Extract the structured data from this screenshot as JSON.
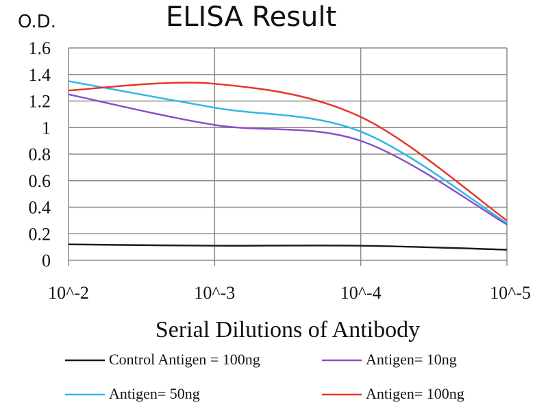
{
  "chart_data": {
    "type": "line",
    "title": "ELISA Result",
    "ylabel": "O.D.",
    "xlabel": "Serial Dilutions of Antibody",
    "categories": [
      "10^-2",
      "10^-3",
      "10^-4",
      "10^-5"
    ],
    "ylim": [
      0,
      1.6
    ],
    "yticks": [
      "0",
      "0.2",
      "0.4",
      "0.6",
      "0.8",
      "1",
      "1.2",
      "1.4",
      "1.6"
    ],
    "grid": true,
    "legend_position": "bottom",
    "series": [
      {
        "name": "Control Antigen = 100ng",
        "color": "#1a1a1a",
        "values": [
          0.12,
          0.11,
          0.11,
          0.08
        ]
      },
      {
        "name": "Antigen= 10ng",
        "color": "#8a4fc7",
        "values": [
          1.25,
          1.02,
          0.9,
          0.27
        ]
      },
      {
        "name": "Antigen= 50ng",
        "color": "#2cb8e6",
        "values": [
          1.35,
          1.15,
          0.97,
          0.28
        ]
      },
      {
        "name": "Antigen= 100ng",
        "color": "#e8352b",
        "values": [
          1.28,
          1.33,
          1.08,
          0.3
        ]
      }
    ]
  }
}
